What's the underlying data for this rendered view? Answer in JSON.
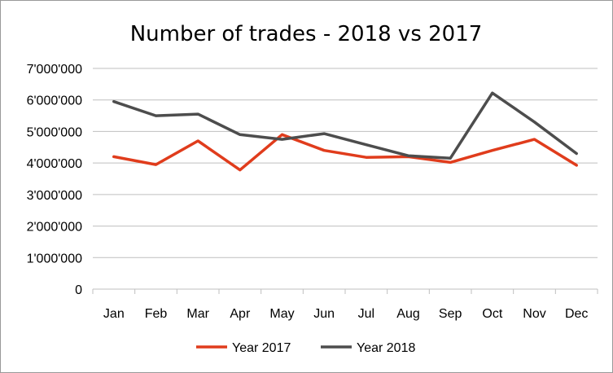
{
  "chart_data": {
    "type": "line",
    "title": "Number of trades - 2018 vs 2017",
    "xlabel": "",
    "ylabel": "",
    "categories": [
      "Jan",
      "Feb",
      "Mar",
      "Apr",
      "May",
      "Jun",
      "Jul",
      "Aug",
      "Sep",
      "Oct",
      "Nov",
      "Dec"
    ],
    "y_ticks": [
      "0",
      "1'000'000",
      "2'000'000",
      "3'000'000",
      "4'000'000",
      "5'000'000",
      "6'000'000",
      "7'000'000"
    ],
    "ylim": [
      0,
      7000000
    ],
    "grid": true,
    "legend_position": "bottom",
    "series": [
      {
        "name": "Year 2017",
        "color": "#e03c1c",
        "values": [
          4200000,
          3950000,
          4700000,
          3780000,
          4900000,
          4400000,
          4180000,
          4200000,
          4020000,
          4400000,
          4750000,
          3930000
        ]
      },
      {
        "name": "Year 2018",
        "color": "#4d4d4d",
        "values": [
          5950000,
          5500000,
          5550000,
          4900000,
          4750000,
          4930000,
          4580000,
          4230000,
          4150000,
          6220000,
          5300000,
          4300000
        ]
      }
    ]
  }
}
